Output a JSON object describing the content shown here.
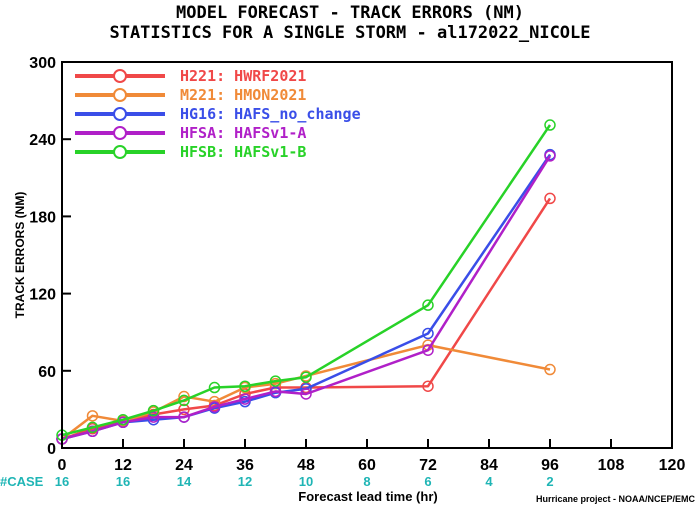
{
  "chart_data": {
    "type": "line",
    "title": "MODEL FORECAST - TRACK ERRORS (NM)",
    "subtitle": "STATISTICS FOR A SINGLE STORM - al172022_NICOLE",
    "xlabel": "Forecast lead time (hr)",
    "ylabel": "TRACK ERRORS (NM)",
    "xlim": [
      0,
      120
    ],
    "ylim": [
      0,
      300
    ],
    "xticks": [
      0,
      12,
      24,
      36,
      48,
      60,
      72,
      84,
      96,
      108,
      120
    ],
    "yticks": [
      0,
      60,
      120,
      180,
      240,
      300
    ],
    "grid": false,
    "legend_position": "top-left",
    "case_label": "#CASE",
    "case_counts": [
      {
        "x": 0,
        "n": "16"
      },
      {
        "x": 12,
        "n": "16"
      },
      {
        "x": 24,
        "n": "14"
      },
      {
        "x": 36,
        "n": "12"
      },
      {
        "x": 48,
        "n": "10"
      },
      {
        "x": 60,
        "n": "8"
      },
      {
        "x": 72,
        "n": "6"
      },
      {
        "x": 84,
        "n": "4"
      },
      {
        "x": 96,
        "n": "2"
      }
    ],
    "credit": "Hurricane project - NOAA/NCEP/EMC",
    "series": [
      {
        "name": "H221: HWRF2021",
        "color": "#f04848",
        "x": [
          0,
          6,
          12,
          18,
          24,
          30,
          36,
          42,
          48,
          72,
          96
        ],
        "y": [
          7,
          15,
          21,
          26,
          30,
          33,
          42,
          47,
          47,
          48,
          194
        ]
      },
      {
        "name": "M221: HMON2021",
        "color": "#f08a38",
        "x": [
          0,
          6,
          12,
          18,
          24,
          30,
          36,
          42,
          48,
          72,
          96
        ],
        "y": [
          7,
          25,
          21,
          28,
          40,
          36,
          47,
          50,
          56,
          80,
          61
        ]
      },
      {
        "name": "HG16: HAFS_no_change",
        "color": "#3a4ee8",
        "x": [
          0,
          6,
          12,
          18,
          24,
          30,
          36,
          42,
          48,
          72,
          96
        ],
        "y": [
          7,
          13,
          20,
          22,
          24,
          31,
          36,
          43,
          46,
          89,
          228
        ]
      },
      {
        "name": "HFSA: HAFSv1-A",
        "color": "#b020c8",
        "x": [
          0,
          6,
          12,
          18,
          24,
          30,
          36,
          42,
          48,
          72,
          96
        ],
        "y": [
          7,
          13,
          20,
          24,
          24,
          32,
          38,
          44,
          42,
          76,
          227
        ]
      },
      {
        "name": "HFSB: HAFSv1-B",
        "color": "#28d228",
        "x": [
          0,
          6,
          12,
          18,
          24,
          30,
          36,
          42,
          48,
          72,
          96
        ],
        "y": [
          10,
          16,
          22,
          29,
          37,
          47,
          48,
          52,
          55,
          111,
          251
        ]
      }
    ]
  }
}
